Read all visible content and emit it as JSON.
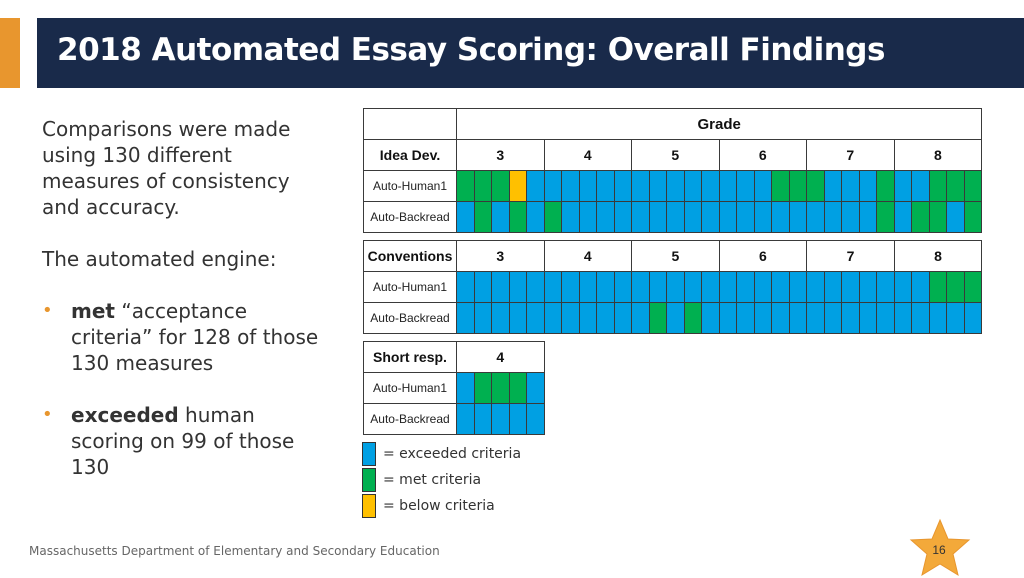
{
  "header": {
    "title": "2018 Automated Essay Scoring: Overall Findings"
  },
  "left": {
    "intro": "Comparisons were made using 130 different measures of consistency and accuracy.",
    "engine_line": "The automated engine:",
    "bullets": [
      {
        "marker": "•",
        "bold": "met",
        "rest": " “acceptance criteria” for 128 of those 130 measures"
      },
      {
        "marker": "•",
        "bold": "exceeded",
        "rest": " human scoring on 99 of those 130"
      }
    ]
  },
  "colors": {
    "exceeded": "#00a0e3",
    "met": "#00b050",
    "below": "#ffc000",
    "title_bg": "#192a4a",
    "accent": "#e8962e"
  },
  "tables": {
    "idea": {
      "header_label": "Grade",
      "label": "Idea Dev.",
      "grades": [
        "3",
        "4",
        "5",
        "6",
        "7",
        "8"
      ],
      "rows": [
        {
          "name": "Auto-Human1",
          "cells": "mmmbeeeeeeeeeeeeeemmmeeemeemmme"
        },
        {
          "name": "Auto-Backread",
          "cells": "emememeeeeeeeeeeeeeeeeeememmeme"
        }
      ]
    },
    "conv": {
      "label": "Conventions",
      "grades": [
        "3",
        "4",
        "5",
        "6",
        "7",
        "8"
      ],
      "rows": [
        {
          "name": "Auto-Human1",
          "cells": "eeeeeeeeeeeeeeeeeeeeeeeeeeemmmme"
        },
        {
          "name": "Auto-Backread",
          "cells": "eeeeeeeeeeememeeeeeeeeeeeeeeeeeee"
        }
      ]
    },
    "short": {
      "label": "Short resp.",
      "grades": [
        "4"
      ],
      "rows": [
        {
          "name": "Auto-Human1",
          "cells": "emmme"
        },
        {
          "name": "Auto-Backread",
          "cells": "eeeee"
        }
      ]
    }
  },
  "legend": [
    {
      "key": "exceeded",
      "label": "= exceeded criteria"
    },
    {
      "key": "met",
      "label": "= met criteria"
    },
    {
      "key": "below",
      "label": "= below criteria"
    }
  ],
  "footer": {
    "org": "Massachusetts Department of Elementary and Secondary Education",
    "page": "16"
  }
}
